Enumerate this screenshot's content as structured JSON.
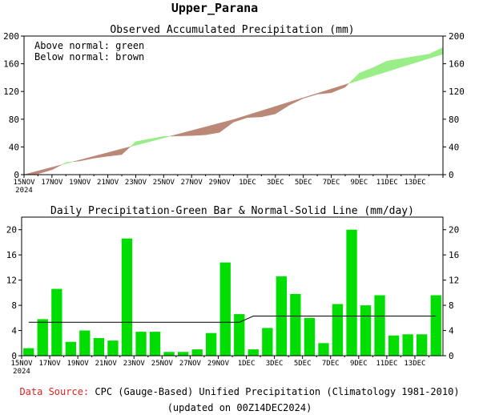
{
  "page_title": "Upper_Parana",
  "footer": {
    "source_label": "Data Source:",
    "source_text": "CPC (Gauge-Based) Unified Precipitation (Climatology 1981-2010)",
    "updated": "(updated on 00Z14DEC2024)"
  },
  "colors": {
    "green": "#00dd00",
    "light_green": "#99ee88",
    "brown": "#bb8877",
    "source_label": "#e02020"
  },
  "chart_data": [
    {
      "type": "area",
      "title": "Observed Accumulated Precipitation (mm)",
      "annotations": [
        "Above normal: green",
        "Below normal: brown"
      ],
      "ylim": [
        0,
        200
      ],
      "yticks": [
        0,
        40,
        80,
        120,
        160,
        200
      ],
      "x_tick_labels": [
        {
          "day": 0,
          "label": "15NOV",
          "sub": "2024"
        },
        {
          "day": 2,
          "label": "17NOV"
        },
        {
          "day": 4,
          "label": "19NOV"
        },
        {
          "day": 6,
          "label": "21NOV"
        },
        {
          "day": 8,
          "label": "23NOV"
        },
        {
          "day": 10,
          "label": "25NOV"
        },
        {
          "day": 12,
          "label": "27NOV"
        },
        {
          "day": 14,
          "label": "29NOV"
        },
        {
          "day": 16,
          "label": "1DEC"
        },
        {
          "day": 18,
          "label": "3DEC"
        },
        {
          "day": 20,
          "label": "5DEC"
        },
        {
          "day": 22,
          "label": "7DEC"
        },
        {
          "day": 24,
          "label": "9DEC"
        },
        {
          "day": 26,
          "label": "11DEC"
        },
        {
          "day": 28,
          "label": "13DEC"
        }
      ],
      "series": [
        {
          "values": [
            0,
            1.2,
            7.0,
            17.6,
            19.8,
            23.8,
            26.6,
            29.0,
            47.6,
            51.4,
            55.2,
            55.8,
            56.4,
            57.4,
            61.0,
            75.8,
            82.4,
            83.4,
            87.8,
            100.4,
            110.2,
            116.2,
            118.2,
            126.4,
            146.4,
            154.4,
            164.0,
            167.2,
            170.6,
            173.9,
            183.5
          ]
        },
        {
          "values": [
            0,
            5.3,
            10.6,
            15.9,
            21.2,
            26.5,
            31.8,
            37.1,
            42.4,
            47.7,
            53.0,
            58.3,
            63.6,
            68.9,
            74.2,
            79.5,
            85.8,
            92.1,
            98.4,
            104.7,
            111.0,
            117.3,
            123.6,
            129.9,
            136.2,
            142.5,
            148.8,
            155.1,
            161.4,
            167.7,
            174.0
          ]
        }
      ]
    },
    {
      "type": "bar",
      "title": "Daily Precipitation-Green Bar & Normal-Solid Line (mm/day)",
      "ylim": [
        0,
        22
      ],
      "yticks": [
        0,
        4,
        8,
        12,
        16,
        20
      ],
      "x_tick_labels": [
        {
          "day": 0,
          "label": "15NOV",
          "sub": "2024"
        },
        {
          "day": 2,
          "label": "17NOV"
        },
        {
          "day": 4,
          "label": "19NOV"
        },
        {
          "day": 6,
          "label": "21NOV"
        },
        {
          "day": 8,
          "label": "23NOV"
        },
        {
          "day": 10,
          "label": "25NOV"
        },
        {
          "day": 12,
          "label": "27NOV"
        },
        {
          "day": 14,
          "label": "29NOV"
        },
        {
          "day": 16,
          "label": "1DEC"
        },
        {
          "day": 18,
          "label": "3DEC"
        },
        {
          "day": 20,
          "label": "5DEC"
        },
        {
          "day": 22,
          "label": "7DEC"
        },
        {
          "day": 24,
          "label": "9DEC"
        },
        {
          "day": 26,
          "label": "11DEC"
        },
        {
          "day": 28,
          "label": "13DEC"
        }
      ],
      "series": [
        {
          "values": [
            1.2,
            5.8,
            10.6,
            2.2,
            4.0,
            2.8,
            2.4,
            18.6,
            3.8,
            3.8,
            0.6,
            0.6,
            1.0,
            3.6,
            14.8,
            6.6,
            1.0,
            4.4,
            12.6,
            9.8,
            6.0,
            2.0,
            8.2,
            20.0,
            8.0,
            9.6,
            3.2,
            3.4,
            3.4,
            9.6
          ]
        },
        {
          "values": [
            5.3,
            5.3,
            5.3,
            5.3,
            5.3,
            5.3,
            5.3,
            5.3,
            5.3,
            5.3,
            5.3,
            5.3,
            5.3,
            5.3,
            5.3,
            5.3,
            6.3,
            6.3,
            6.3,
            6.3,
            6.3,
            6.3,
            6.3,
            6.3,
            6.3,
            6.3,
            6.3,
            6.3,
            6.3,
            6.3
          ]
        }
      ]
    }
  ]
}
